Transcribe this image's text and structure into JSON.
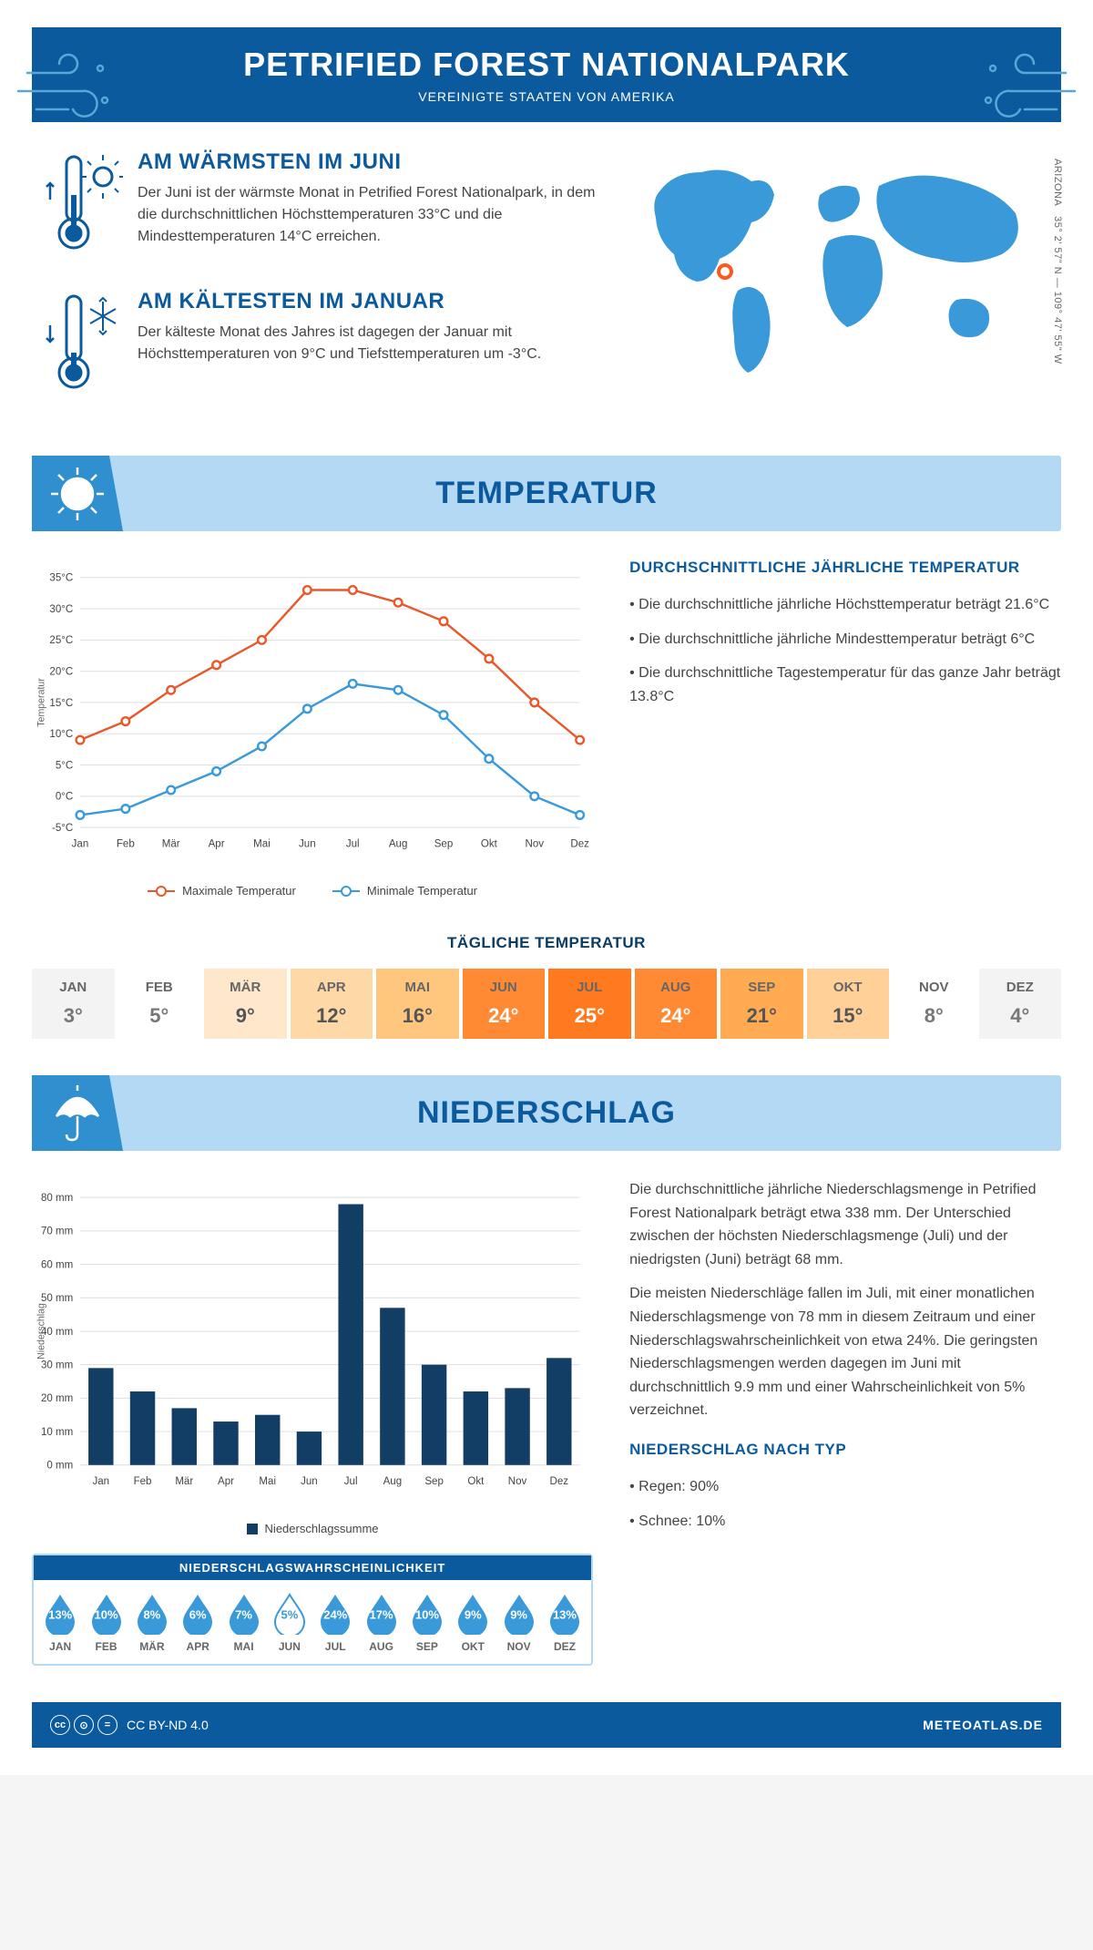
{
  "header": {
    "title": "PETRIFIED FOREST NATIONALPARK",
    "subtitle": "VEREINIGTE STAATEN VON AMERIKA"
  },
  "intro": {
    "warm": {
      "heading": "AM WÄRMSTEN IM JUNI",
      "text": "Der Juni ist der wärmste Monat in Petrified Forest Nationalpark, in dem die durchschnittlichen Höchsttemperaturen 33°C und die Mindesttemperaturen 14°C erreichen."
    },
    "cold": {
      "heading": "AM KÄLTESTEN IM JANUAR",
      "text": "Der kälteste Monat des Jahres ist dagegen der Januar mit Höchsttemperaturen von 9°C und Tiefsttemperaturen um -3°C."
    },
    "coords": "35° 2' 57\" N — 109° 47' 55\" W",
    "region": "ARIZONA"
  },
  "sections": {
    "temp": "TEMPERATUR",
    "precip": "NIEDERSCHLAG"
  },
  "tempChart": {
    "months": [
      "Jan",
      "Feb",
      "Mär",
      "Apr",
      "Mai",
      "Jun",
      "Jul",
      "Aug",
      "Sep",
      "Okt",
      "Nov",
      "Dez"
    ],
    "max": [
      9,
      12,
      17,
      21,
      25,
      33,
      33,
      31,
      28,
      22,
      15,
      9
    ],
    "min": [
      -3,
      -2,
      1,
      4,
      8,
      14,
      18,
      17,
      13,
      6,
      0,
      -3
    ],
    "ylabel": "Temperatur",
    "ylim": [
      -5,
      35
    ],
    "ystep": 5,
    "max_color": "#e8582a",
    "min_color": "#3a9ad9",
    "grid_color": "#dddddd",
    "legend_max": "Maximale Temperatur",
    "legend_min": "Minimale Temperatur"
  },
  "tempText": {
    "heading": "DURCHSCHNITTLICHE JÄHRLICHE TEMPERATUR",
    "bullets": [
      "Die durchschnittliche jährliche Höchsttemperatur beträgt 21.6°C",
      "Die durchschnittliche jährliche Mindesttemperatur beträgt 6°C",
      "Die durchschnittliche Tagestemperatur für das ganze Jahr beträgt 13.8°C"
    ]
  },
  "dailyTemp": {
    "title": "TÄGLICHE TEMPERATUR",
    "months": [
      "JAN",
      "FEB",
      "MÄR",
      "APR",
      "MAI",
      "JUN",
      "JUL",
      "AUG",
      "SEP",
      "OKT",
      "NOV",
      "DEZ"
    ],
    "values": [
      "3°",
      "5°",
      "9°",
      "12°",
      "16°",
      "24°",
      "25°",
      "24°",
      "21°",
      "15°",
      "8°",
      "4°"
    ],
    "bg_colors": [
      "#f3f3f3",
      "#ffffff",
      "#ffe7cc",
      "#ffd8a8",
      "#ffc77d",
      "#ff8a33",
      "#ff7a1f",
      "#ff8a33",
      "#ffab52",
      "#ffd199",
      "#ffffff",
      "#f3f3f3"
    ],
    "text_colors": [
      "#777",
      "#777",
      "#555",
      "#555",
      "#555",
      "#fff",
      "#fff",
      "#fff",
      "#555",
      "#555",
      "#777",
      "#777"
    ]
  },
  "precipChart": {
    "months": [
      "Jan",
      "Feb",
      "Mär",
      "Apr",
      "Mai",
      "Jun",
      "Jul",
      "Aug",
      "Sep",
      "Okt",
      "Nov",
      "Dez"
    ],
    "values": [
      29,
      22,
      17,
      13,
      15,
      10,
      78,
      47,
      30,
      22,
      23,
      32
    ],
    "ylabel": "Niederschlag",
    "ylim": [
      0,
      80
    ],
    "ystep": 10,
    "bar_color": "#123e66",
    "grid_color": "#dddddd",
    "legend": "Niederschlagssumme"
  },
  "precipText": {
    "para1": "Die durchschnittliche jährliche Niederschlagsmenge in Petrified Forest Nationalpark beträgt etwa 338 mm. Der Unterschied zwischen der höchsten Niederschlagsmenge (Juli) und der niedrigsten (Juni) beträgt 68 mm.",
    "para2": "Die meisten Niederschläge fallen im Juli, mit einer monatlichen Niederschlagsmenge von 78 mm in diesem Zeitraum und einer Niederschlagswahrscheinlichkeit von etwa 24%. Die geringsten Niederschlagsmengen werden dagegen im Juni mit durchschnittlich 9.9 mm und einer Wahrscheinlichkeit von 5% verzeichnet.",
    "byTypeHeading": "NIEDERSCHLAG NACH TYP",
    "byType": [
      "Regen: 90%",
      "Schnee: 10%"
    ]
  },
  "precipProb": {
    "title": "NIEDERSCHLAGSWAHRSCHEINLICHKEIT",
    "months": [
      "JAN",
      "FEB",
      "MÄR",
      "APR",
      "MAI",
      "JUN",
      "JUL",
      "AUG",
      "SEP",
      "OKT",
      "NOV",
      "DEZ"
    ],
    "values": [
      "13%",
      "10%",
      "8%",
      "6%",
      "7%",
      "5%",
      "24%",
      "17%",
      "10%",
      "9%",
      "9%",
      "13%"
    ],
    "filled": [
      true,
      true,
      true,
      true,
      true,
      false,
      true,
      true,
      true,
      true,
      true,
      true
    ],
    "fill_color": "#3a9ad9",
    "empty_color": "#ffffff",
    "border_color": "#b4d9f4"
  },
  "footer": {
    "license": "CC BY-ND 4.0",
    "site": "METEOATLAS.DE"
  },
  "colors": {
    "brand": "#0c5a9e",
    "light_blue": "#b4d9f4",
    "mid_blue": "#2f8fcf",
    "map_fill": "#3a9ad9"
  }
}
